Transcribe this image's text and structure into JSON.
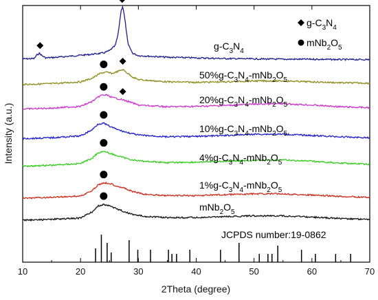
{
  "chart_data": {
    "type": "line",
    "title": "",
    "xlabel": "2Theta (degree)",
    "ylabel": "Intensity (a.u.)",
    "xlim": [
      10,
      70
    ],
    "xticks": [
      10,
      20,
      30,
      40,
      50,
      60,
      70
    ],
    "y_tick_labels_shown": false,
    "grid": false,
    "legend_position": "top-right",
    "legend": [
      {
        "marker": "diamond",
        "label_parts": [
          [
            "g-C",
            ""
          ],
          [
            "3",
            "sub"
          ],
          [
            "N",
            ""
          ],
          [
            "4",
            "sub"
          ]
        ]
      },
      {
        "marker": "circle",
        "label_parts": [
          [
            "mNb",
            ""
          ],
          [
            "2",
            "sub"
          ],
          [
            "O",
            ""
          ],
          [
            "5",
            "sub"
          ]
        ]
      }
    ],
    "series": [
      {
        "label_parts": [
          [
            "g-C",
            ""
          ],
          [
            "3",
            "sub"
          ],
          [
            "N",
            ""
          ],
          [
            "4",
            "sub"
          ]
        ],
        "color": "#1a1a8c",
        "x": [
          10,
          12,
          12.4,
          12.9,
          13.4,
          14,
          16,
          18,
          20,
          22,
          24,
          25,
          26,
          26.5,
          27.0,
          27.3,
          27.7,
          28.2,
          29,
          30,
          35,
          40,
          45,
          50,
          55,
          60,
          65,
          70
        ],
        "y": [
          0.5,
          0.6,
          1.6,
          2.2,
          1.4,
          0.8,
          1.0,
          1.3,
          1.6,
          1.9,
          2.3,
          3.0,
          4.5,
          8,
          15,
          16.5,
          12,
          5,
          2.2,
          1.5,
          1.0,
          0.8,
          0.6,
          0.5,
          0.4,
          0.4,
          0.3,
          0.3
        ],
        "marks": [
          {
            "type": "diamond",
            "x": 13
          },
          {
            "type": "diamond",
            "x": 27.2
          }
        ]
      },
      {
        "label_parts": [
          [
            "50%g-C",
            ""
          ],
          [
            "3",
            "sub"
          ],
          [
            "N",
            ""
          ],
          [
            "4",
            "sub"
          ],
          [
            "-mNb",
            ""
          ],
          [
            "2",
            "sub"
          ],
          [
            "O",
            ""
          ],
          [
            "5",
            "sub"
          ]
        ],
        "color": "#8c8c1a",
        "x": [
          10,
          15,
          20,
          22,
          23.5,
          24.5,
          25.5,
          26.5,
          27.3,
          28,
          29,
          30,
          35,
          40,
          45,
          50,
          55,
          60,
          65,
          70
        ],
        "y": [
          0.5,
          0.7,
          1.1,
          1.9,
          3.1,
          3.3,
          3.0,
          3.5,
          3.9,
          3.2,
          2.2,
          1.6,
          1.1,
          1.0,
          1.1,
          1.3,
          1.3,
          1.1,
          0.9,
          0.8
        ],
        "marks": [
          {
            "type": "circle",
            "x": 24
          },
          {
            "type": "diamond",
            "x": 27.3
          }
        ]
      },
      {
        "label_parts": [
          [
            "20%g-C",
            ""
          ],
          [
            "3",
            "sub"
          ],
          [
            "N",
            ""
          ],
          [
            "4",
            "sub"
          ],
          [
            "-mNb",
            ""
          ],
          [
            "2",
            "sub"
          ],
          [
            "O",
            ""
          ],
          [
            "5",
            "sub"
          ]
        ],
        "color": "#cc33cc",
        "x": [
          10,
          15,
          20,
          22,
          23.5,
          24.5,
          25.5,
          27,
          28.5,
          30,
          35,
          40,
          45,
          50,
          55,
          60,
          65,
          70
        ],
        "y": [
          0.4,
          0.6,
          1.0,
          2.1,
          3.5,
          3.6,
          3.0,
          2.6,
          2.0,
          1.3,
          0.9,
          1.0,
          1.2,
          1.5,
          1.6,
          1.3,
          0.9,
          0.7
        ],
        "marks": [
          {
            "type": "circle",
            "x": 24
          },
          {
            "type": "diamond",
            "x": 27.3
          }
        ]
      },
      {
        "label_parts": [
          [
            "10%g-C",
            ""
          ],
          [
            "3",
            "sub"
          ],
          [
            "N",
            ""
          ],
          [
            "4",
            "sub"
          ],
          [
            "-mNb",
            ""
          ],
          [
            "2",
            "sub"
          ],
          [
            "O",
            ""
          ],
          [
            "5",
            "sub"
          ]
        ],
        "color": "#1a1acc",
        "x": [
          10,
          15,
          20,
          22,
          23,
          24,
          25,
          26.5,
          28,
          30,
          35,
          40,
          45,
          50,
          55,
          60,
          65,
          70
        ],
        "y": [
          0.4,
          0.6,
          1.0,
          2.4,
          3.7,
          3.9,
          3.2,
          2.4,
          1.8,
          1.2,
          0.8,
          0.9,
          1.1,
          1.4,
          1.4,
          1.1,
          0.8,
          0.6
        ],
        "marks": [
          {
            "type": "circle",
            "x": 24
          }
        ]
      },
      {
        "label_parts": [
          [
            "4%g-C",
            ""
          ],
          [
            "3",
            "sub"
          ],
          [
            "N",
            ""
          ],
          [
            "4",
            "sub"
          ],
          [
            "-mNb",
            ""
          ],
          [
            "2",
            "sub"
          ],
          [
            "O",
            ""
          ],
          [
            "5",
            "sub"
          ]
        ],
        "color": "#33cc1a",
        "x": [
          10,
          15,
          20,
          22,
          23,
          24,
          25,
          26.5,
          28,
          30,
          35,
          40,
          45,
          50,
          55,
          60,
          65,
          70
        ],
        "y": [
          0.4,
          0.6,
          1.0,
          2.2,
          3.4,
          3.8,
          3.3,
          2.7,
          2.1,
          1.6,
          1.2,
          1.3,
          1.5,
          1.7,
          1.8,
          1.5,
          1.1,
          0.8
        ],
        "marks": [
          {
            "type": "circle",
            "x": 24
          }
        ]
      },
      {
        "label_parts": [
          [
            "1%g-C",
            ""
          ],
          [
            "3",
            "sub"
          ],
          [
            "N",
            ""
          ],
          [
            "4",
            "sub"
          ],
          [
            "-mNb",
            ""
          ],
          [
            "2",
            "sub"
          ],
          [
            "O",
            ""
          ],
          [
            "5",
            "sub"
          ]
        ],
        "color": "#cc2a1a",
        "x": [
          10,
          15,
          20,
          22,
          23,
          24,
          25,
          26,
          27.5,
          29,
          31,
          35,
          40,
          45,
          50,
          55,
          60,
          65,
          70
        ],
        "y": [
          0.3,
          0.5,
          0.8,
          2.0,
          3.3,
          3.8,
          3.7,
          3.2,
          2.6,
          1.8,
          1.2,
          0.9,
          0.9,
          1.1,
          1.3,
          1.3,
          1.0,
          0.7,
          0.5
        ],
        "marks": [
          {
            "type": "circle",
            "x": 24
          }
        ]
      },
      {
        "label_parts": [
          [
            "mNb",
            ""
          ],
          [
            "2",
            "sub"
          ],
          [
            "O",
            ""
          ],
          [
            "5",
            "sub"
          ]
        ],
        "color": "#111111",
        "x": [
          10,
          15,
          20,
          22,
          23,
          24,
          25,
          26,
          27.5,
          29,
          31,
          35,
          40,
          45,
          50,
          55,
          60,
          65,
          70
        ],
        "y": [
          0.3,
          0.5,
          0.8,
          2.2,
          3.5,
          3.9,
          3.6,
          3.0,
          2.3,
          1.6,
          1.2,
          0.9,
          0.9,
          1.1,
          1.3,
          1.3,
          1.0,
          0.7,
          0.5
        ],
        "marks": [
          {
            "type": "circle",
            "x": 24
          }
        ]
      }
    ],
    "reference": {
      "label": "JCPDS number:19-0862",
      "lines": [
        {
          "x": 22.6,
          "h": 0.5
        },
        {
          "x": 23.6,
          "h": 1.0
        },
        {
          "x": 24.6,
          "h": 0.7
        },
        {
          "x": 25.3,
          "h": 0.35
        },
        {
          "x": 28.4,
          "h": 0.8
        },
        {
          "x": 29.9,
          "h": 0.45
        },
        {
          "x": 32.1,
          "h": 0.45
        },
        {
          "x": 35.2,
          "h": 0.45
        },
        {
          "x": 35.8,
          "h": 0.3
        },
        {
          "x": 36.6,
          "h": 0.3
        },
        {
          "x": 38.9,
          "h": 0.45
        },
        {
          "x": 44.2,
          "h": 0.45
        },
        {
          "x": 47.4,
          "h": 0.7
        },
        {
          "x": 50.9,
          "h": 0.3
        },
        {
          "x": 52.4,
          "h": 0.3
        },
        {
          "x": 53.1,
          "h": 0.3
        },
        {
          "x": 54.1,
          "h": 0.6
        },
        {
          "x": 58.2,
          "h": 0.45
        },
        {
          "x": 60.6,
          "h": 0.3
        },
        {
          "x": 64.1,
          "h": 0.3
        },
        {
          "x": 66.7,
          "h": 0.3
        }
      ]
    }
  }
}
